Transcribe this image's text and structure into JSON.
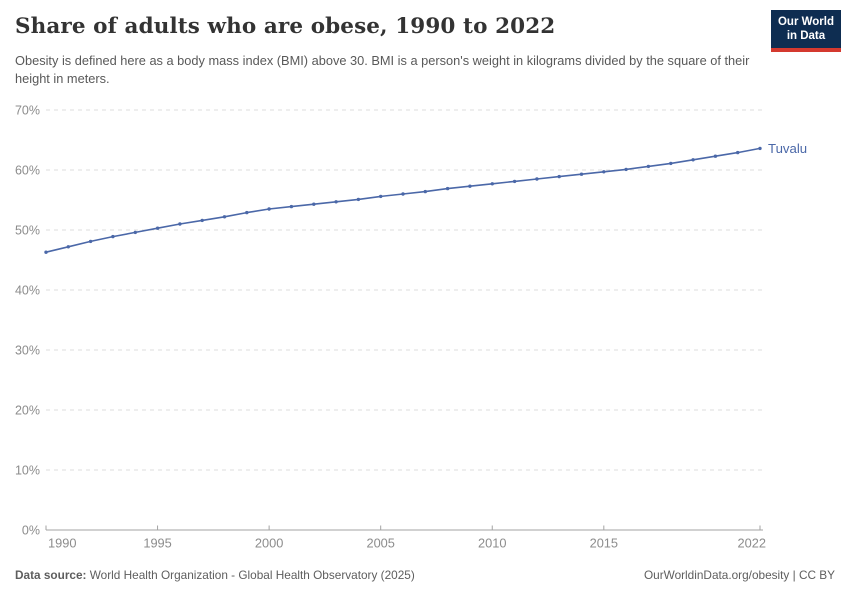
{
  "header": {
    "title": "Share of adults who are obese, 1990 to 2022",
    "subtitle": "Obesity is defined here as a body mass index (BMI) above 30. BMI is a person's weight in kilograms divided by the square of their height in meters.",
    "logo": {
      "line1": "Our World",
      "line2": "in Data",
      "bg_color": "#0e2d51",
      "accent_color": "#d4392f"
    }
  },
  "chart_data": {
    "type": "line",
    "title": "Share of adults who are obese, 1990 to 2022",
    "xlabel": "",
    "ylabel": "",
    "xlim": [
      1990,
      2022
    ],
    "ylim": [
      0,
      70
    ],
    "x_ticks": [
      1990,
      1995,
      2000,
      2005,
      2010,
      2015,
      2022
    ],
    "y_ticks": [
      0,
      10,
      20,
      30,
      40,
      50,
      60,
      70
    ],
    "y_tick_suffix": "%",
    "grid": "horizontal-dashed",
    "legend": "end-of-line-label",
    "series": [
      {
        "name": "Tuvalu",
        "color": "#4b68a8",
        "x": [
          1990,
          1991,
          1992,
          1993,
          1994,
          1995,
          1996,
          1997,
          1998,
          1999,
          2000,
          2001,
          2002,
          2003,
          2004,
          2005,
          2006,
          2007,
          2008,
          2009,
          2010,
          2011,
          2012,
          2013,
          2014,
          2015,
          2016,
          2017,
          2018,
          2019,
          2020,
          2021,
          2022
        ],
        "values": [
          46.3,
          47.2,
          48.1,
          48.9,
          49.6,
          50.3,
          51.0,
          51.6,
          52.2,
          52.9,
          53.5,
          53.9,
          54.3,
          54.7,
          55.1,
          55.6,
          56.0,
          56.4,
          56.9,
          57.3,
          57.7,
          58.1,
          58.5,
          58.9,
          59.3,
          59.7,
          60.1,
          60.6,
          61.1,
          61.7,
          62.3,
          62.9,
          63.6
        ]
      }
    ]
  },
  "footer": {
    "datasource_label": "Data source:",
    "datasource_value": " World Health Organization - Global Health Observatory (2025)",
    "attribution": "OurWorldinData.org/obesity | CC BY"
  }
}
